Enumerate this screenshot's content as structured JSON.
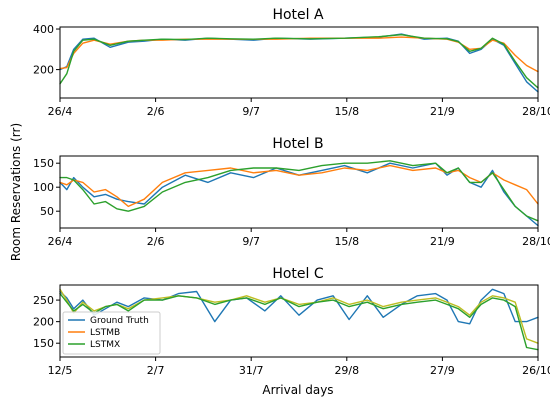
{
  "figure": {
    "ylabel": "Room Reservations (rr)",
    "xlabel": "Arrival days"
  },
  "colors": {
    "Ground Truth": "#1f77b4",
    "LSTMB": "#ff7f0e",
    "LSTMX": "#2ca02c",
    "Hotel C LSTMB": "#bcbd22"
  },
  "chart_data": [
    {
      "type": "line",
      "title": "Hotel A",
      "xlabel": "",
      "ylabel": "",
      "x_ticks": [
        "26/4",
        "2/6",
        "9/7",
        "15/8",
        "21/9",
        "28/10"
      ],
      "y_ticks": [
        200,
        400
      ],
      "ylim": [
        60,
        410
      ],
      "x": [
        0,
        3,
        6,
        10,
        15,
        22,
        30,
        37,
        45,
        55,
        65,
        75,
        85,
        95,
        110,
        125,
        140,
        150,
        160,
        170,
        175,
        180,
        185,
        190,
        195,
        200,
        205,
        210
      ],
      "series": [
        {
          "name": "Ground Truth",
          "values": [
            200,
            215,
            300,
            350,
            355,
            310,
            335,
            340,
            350,
            345,
            355,
            350,
            345,
            355,
            350,
            355,
            360,
            375,
            350,
            355,
            340,
            280,
            300,
            350,
            320,
            230,
            140,
            90
          ]
        },
        {
          "name": "LSTMB",
          "values": [
            205,
            210,
            280,
            330,
            345,
            325,
            340,
            345,
            345,
            350,
            350,
            350,
            350,
            350,
            355,
            355,
            355,
            360,
            355,
            350,
            335,
            300,
            305,
            345,
            330,
            270,
            220,
            190
          ]
        },
        {
          "name": "LSTMX",
          "values": [
            130,
            180,
            290,
            345,
            350,
            320,
            340,
            345,
            350,
            348,
            355,
            352,
            350,
            355,
            352,
            355,
            362,
            372,
            355,
            352,
            338,
            290,
            305,
            355,
            325,
            240,
            160,
            110
          ]
        }
      ]
    },
    {
      "type": "line",
      "title": "Hotel B",
      "xlabel": "",
      "ylabel": "",
      "x_ticks": [
        "26/4",
        "2/6",
        "9/7",
        "15/8",
        "21/9",
        "28/10"
      ],
      "y_ticks": [
        50,
        100,
        150
      ],
      "ylim": [
        15,
        165
      ],
      "x": [
        0,
        3,
        6,
        10,
        15,
        20,
        25,
        30,
        37,
        45,
        55,
        65,
        75,
        85,
        95,
        105,
        115,
        125,
        135,
        145,
        155,
        165,
        170,
        175,
        180,
        185,
        190,
        195,
        200,
        205,
        210
      ],
      "series": [
        {
          "name": "Ground Truth",
          "values": [
            110,
            95,
            120,
            100,
            80,
            85,
            75,
            70,
            65,
            100,
            125,
            110,
            130,
            120,
            140,
            125,
            135,
            145,
            130,
            150,
            140,
            150,
            125,
            140,
            110,
            100,
            135,
            90,
            60,
            40,
            20
          ]
        },
        {
          "name": "LSTMB",
          "values": [
            110,
            105,
            115,
            110,
            90,
            95,
            80,
            60,
            75,
            110,
            130,
            135,
            140,
            130,
            135,
            125,
            130,
            140,
            135,
            145,
            135,
            140,
            130,
            135,
            120,
            110,
            130,
            115,
            105,
            95,
            65
          ]
        },
        {
          "name": "LSTMX",
          "values": [
            120,
            120,
            115,
            95,
            65,
            70,
            55,
            50,
            60,
            90,
            110,
            120,
            135,
            140,
            140,
            135,
            145,
            150,
            150,
            155,
            145,
            150,
            130,
            140,
            110,
            110,
            130,
            95,
            60,
            40,
            30
          ]
        }
      ]
    },
    {
      "type": "line",
      "title": "Hotel C",
      "xlabel": "Arrival days",
      "ylabel": "",
      "x_ticks": [
        "12/5",
        "2/7",
        "31/7",
        "29/8",
        "27/9",
        "26/10"
      ],
      "y_ticks": [
        150,
        200,
        250
      ],
      "ylim": [
        118,
        285
      ],
      "legend": [
        "Ground Truth",
        "LSTMB",
        "LSTMX"
      ],
      "legend_position": "bottom-left",
      "x": [
        0,
        3,
        6,
        10,
        15,
        20,
        25,
        30,
        37,
        45,
        52,
        60,
        68,
        75,
        82,
        90,
        97,
        105,
        113,
        120,
        127,
        135,
        142,
        150,
        157,
        165,
        170,
        175,
        180,
        185,
        190,
        195,
        200,
        205,
        210
      ],
      "series": [
        {
          "name": "Ground Truth",
          "values": [
            270,
            255,
            230,
            250,
            215,
            230,
            245,
            235,
            255,
            250,
            265,
            270,
            200,
            250,
            255,
            225,
            260,
            215,
            250,
            260,
            205,
            260,
            210,
            240,
            260,
            265,
            250,
            200,
            195,
            250,
            275,
            265,
            200,
            200,
            210
          ]
        },
        {
          "name": "LSTMB",
          "values": [
            275,
            250,
            220,
            245,
            225,
            235,
            240,
            230,
            250,
            255,
            260,
            255,
            245,
            250,
            260,
            245,
            255,
            240,
            245,
            255,
            240,
            250,
            235,
            245,
            250,
            255,
            245,
            235,
            215,
            245,
            260,
            255,
            245,
            160,
            150
          ]
        },
        {
          "name": "LSTMX",
          "values": [
            265,
            245,
            225,
            240,
            220,
            235,
            240,
            225,
            250,
            250,
            260,
            255,
            240,
            250,
            255,
            240,
            255,
            235,
            245,
            250,
            235,
            245,
            230,
            240,
            245,
            250,
            240,
            230,
            210,
            240,
            255,
            250,
            235,
            140,
            135
          ]
        }
      ]
    }
  ]
}
